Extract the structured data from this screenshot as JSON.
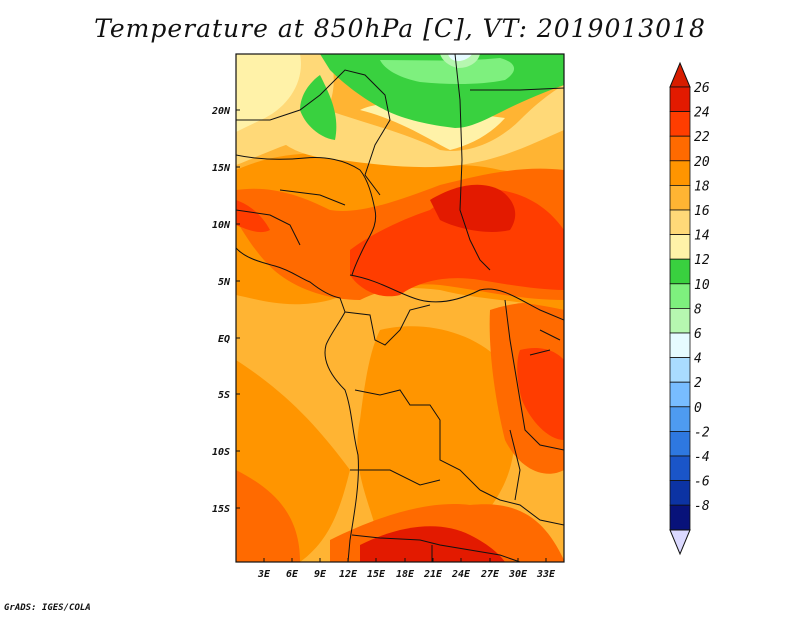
{
  "title": "Temperature at 850hPa [C], VT: 2019013018",
  "credit": "GrADS: IGES/COLA",
  "map": {
    "lat_ticks": [
      "20N",
      "15N",
      "10N",
      "5N",
      "EQ",
      "5S",
      "10S",
      "15S"
    ],
    "lon_ticks": [
      "3E",
      "6E",
      "9E",
      "12E",
      "15E",
      "18E",
      "21E",
      "24E",
      "27E",
      "30E",
      "33E"
    ]
  },
  "colorbar": {
    "labels": [
      "26",
      "24",
      "22",
      "20",
      "18",
      "16",
      "14",
      "12",
      "10",
      "8",
      "6",
      "4",
      "2",
      "0",
      "-2",
      "-4",
      "-6",
      "-8"
    ],
    "colors": [
      "#e31a00",
      "#ff3d00",
      "#ff6a00",
      "#ff9500",
      "#ffb433",
      "#ffd978",
      "#fff2a8",
      "#39d13f",
      "#7ef07e",
      "#b6f7b0",
      "#e6fbff",
      "#a9dcff",
      "#78bdff",
      "#4e9bf0",
      "#2e78e0",
      "#1a55c8",
      "#0c33a3",
      "#08127a"
    ],
    "top_color": "#d81d00",
    "bottom_color": "#dbd9ff"
  }
}
